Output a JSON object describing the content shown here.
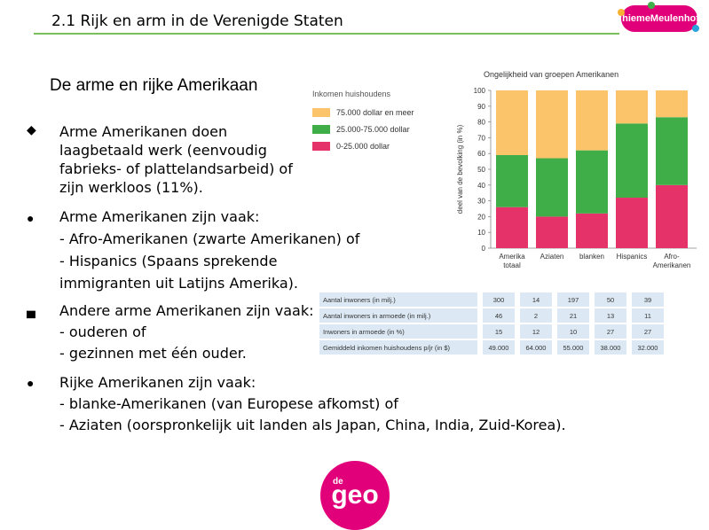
{
  "header": {
    "title": "2.1 Rijk en arm in de Verenigde Staten",
    "logo": "ThiemeMeulenhoff"
  },
  "section": {
    "title": "De arme en rijke Amerikaan"
  },
  "bullets": [
    {
      "lines": [
        "Arme Amerikanen doen",
        "laagbetaald werk (eenvoudig",
        "fabrieks- of plattelandsarbeid) of",
        "zijn werkloos (11%)."
      ]
    },
    {
      "lines": [
        "Arme Amerikanen zijn vaak:",
        "- Afro-Amerikanen (zwarte Amerikanen) of",
        "- Hispanics (Spaans sprekende",
        "immigranten uit Latijns Amerika)."
      ]
    },
    {
      "lines": [
        "Andere arme Amerikanen zijn vaak:",
        "- ouderen of",
        "- gezinnen met één ouder."
      ]
    },
    {
      "lines": [
        "Rijke Amerikanen zijn vaak:",
        "- blanke-Amerikanen (van Europese afkomst) of",
        "- Aziaten (oorspronkelijk uit landen als Japan, China, India, Zuid-Korea)."
      ]
    }
  ],
  "chart_data": {
    "type": "bar",
    "stacked": true,
    "title": "Ongelijkheid van groepen Amerikanen",
    "ylabel": "deel van de bevolking (in %)",
    "ylim": [
      0,
      100
    ],
    "yticks": [
      0,
      10,
      20,
      30,
      40,
      50,
      60,
      70,
      80,
      90,
      100
    ],
    "legend_title": "Inkomen huishoudens",
    "categories": [
      "Amerika totaal",
      "Aziaten",
      "blanken",
      "Hispanics",
      "Afro-Amerikanen"
    ],
    "category_lines": [
      [
        "Amerika",
        "totaal"
      ],
      [
        "Aziaten"
      ],
      [
        "blanken"
      ],
      [
        "Hispanics"
      ],
      [
        "Afro-",
        "Amerikanen"
      ]
    ],
    "series": [
      {
        "name": "0-25.000 dollar",
        "color": "#e5336a",
        "values": [
          26,
          20,
          22,
          32,
          40
        ]
      },
      {
        "name": "25.000-75.000 dollar",
        "color": "#3fae49",
        "values": [
          33,
          37,
          40,
          47,
          43
        ]
      },
      {
        "name": "75.000 dollar en meer",
        "color": "#fcc46a",
        "values": [
          41,
          43,
          38,
          21,
          17
        ]
      }
    ]
  },
  "table": {
    "rows": [
      {
        "label": "Aantal inwoners (in milj.)",
        "values": [
          "300",
          "14",
          "197",
          "50",
          "39"
        ]
      },
      {
        "label": "Aantal inwoners in armoede (in milj.)",
        "values": [
          "46",
          "2",
          "21",
          "13",
          "11"
        ]
      },
      {
        "label": "Inwoners in armoede (in %)",
        "values": [
          "15",
          "12",
          "10",
          "27",
          "27"
        ]
      },
      {
        "label": "Gemiddeld inkomen huishoudens p/jr (in $)",
        "values": [
          "49.000",
          "64.000",
          "55.000",
          "38.000",
          "32.000"
        ]
      }
    ]
  },
  "footer": {
    "logo_small": "de",
    "logo_main": "geo"
  },
  "colors": {
    "accent_green": "#7bbf5a",
    "brand_magenta": "#e2007a",
    "table_bg": "#dce9f4"
  }
}
